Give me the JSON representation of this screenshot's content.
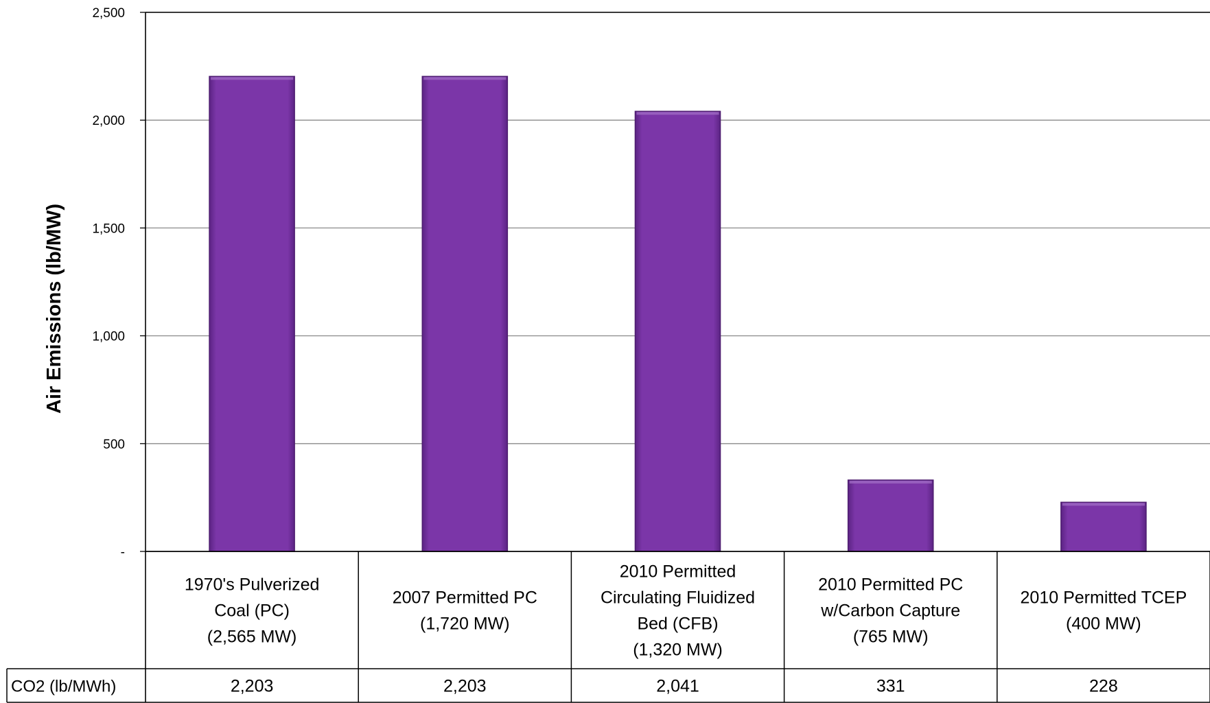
{
  "chart_data": {
    "type": "bar",
    "title": "",
    "xlabel": "",
    "ylabel": "Air Emissions (lb/MW)",
    "ylim": [
      0,
      2500
    ],
    "yticks": [
      {
        "value": 0,
        "label": "-"
      },
      {
        "value": 500,
        "label": "500"
      },
      {
        "value": 1000,
        "label": "1,000"
      },
      {
        "value": 1500,
        "label": "1,500"
      },
      {
        "value": 2000,
        "label": "2,000"
      },
      {
        "value": 2500,
        "label": "2,500"
      }
    ],
    "grid": true,
    "legend": "none",
    "categories": [
      [
        "1970's Pulverized",
        "Coal (PC)",
        "(2,565 MW)"
      ],
      [
        "2007 Permitted PC",
        "(1,720 MW)"
      ],
      [
        "2010 Permitted",
        "Circulating Fluidized",
        "Bed (CFB)",
        "(1,320 MW)"
      ],
      [
        "2010 Permitted PC",
        "w/Carbon Capture",
        "(765 MW)"
      ],
      [
        "2010 Permitted TCEP",
        "(400 MW)"
      ]
    ],
    "series": [
      {
        "name": "CO2 (lb/MWh)",
        "color": "#7b36a8",
        "values": [
          2203,
          2203,
          2041,
          331,
          228
        ],
        "table_labels": [
          "2,203",
          "2,203",
          "2,041",
          "331",
          "228"
        ]
      }
    ]
  }
}
